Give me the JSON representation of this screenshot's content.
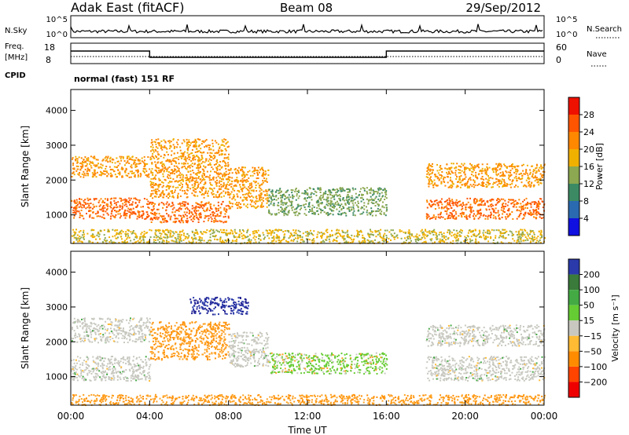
{
  "header": {
    "left": "Adak East (fitACF)",
    "center": "Beam 08",
    "right": "29/Sep/2012"
  },
  "strip": {
    "nsky_label": "N.Sky",
    "nsky_ticks": [
      "10^5",
      "10^0"
    ],
    "nsearch_label": "N.Search",
    "nsearch_ticks": [
      "10^5",
      "10^0"
    ],
    "freq_label": "Freq.",
    "freq_unit": "[MHz]",
    "freq_ticks": [
      "18",
      "8"
    ],
    "nave_label": "Nave",
    "nave_ticks": [
      "60",
      "0"
    ],
    "cpid_label": "CPID",
    "cpid_value": "normal (fast) 151 RF"
  },
  "time_axis": {
    "label": "Time UT",
    "ticks": [
      "00:00",
      "04:00",
      "08:00",
      "12:00",
      "16:00",
      "20:00",
      "00:00"
    ]
  },
  "colors": {
    "power_high": "#ee1100",
    "velocity_ground": "#c8c8c0",
    "velocity_pos": "#2a3aaa",
    "velocity_neg": "#ff8c00"
  },
  "chart_data": [
    {
      "type": "heatmap",
      "quantity": "Power",
      "colorbar_label": "Power [dB]",
      "colorbar_ticks": [
        "28",
        "24",
        "20",
        "16",
        "12",
        "8",
        "4"
      ],
      "colorbar_colors": [
        "#ee1100",
        "#ff5500",
        "#ff8800",
        "#f0b000",
        "#8ca850",
        "#3c8a64",
        "#2a6ab0",
        "#1010e0"
      ],
      "ylabel": "Slant Range [km]",
      "y_ticks": [
        "4000",
        "3000",
        "2000",
        "1000"
      ],
      "xlim_hours": [
        0,
        24
      ],
      "ylim_km": [
        180,
        4600
      ],
      "bands": [
        {
          "t": [
            0,
            4
          ],
          "r": [
            900,
            1500
          ],
          "level": 27
        },
        {
          "t": [
            0,
            4
          ],
          "r": [
            2100,
            2700
          ],
          "level": 24
        },
        {
          "t": [
            4,
            8
          ],
          "r": [
            800,
            1400
          ],
          "level": 27
        },
        {
          "t": [
            4,
            8
          ],
          "r": [
            1500,
            3200
          ],
          "level": 22
        },
        {
          "t": [
            8,
            10
          ],
          "r": [
            1200,
            2400
          ],
          "level": 21
        },
        {
          "t": [
            10,
            16
          ],
          "r": [
            1000,
            1800
          ],
          "level": 14
        },
        {
          "t": [
            18,
            24
          ],
          "r": [
            900,
            1500
          ],
          "level": 27
        },
        {
          "t": [
            18,
            24
          ],
          "r": [
            1800,
            2500
          ],
          "level": 23
        },
        {
          "t": [
            0,
            24
          ],
          "r": [
            200,
            600
          ],
          "level": 20
        }
      ]
    },
    {
      "type": "heatmap",
      "quantity": "Velocity",
      "colorbar_label": "Velocity [m s⁻¹]",
      "colorbar_ticks": [
        "200",
        "100",
        "50",
        "15",
        "−15",
        "−50",
        "−100",
        "−200"
      ],
      "colorbar_colors": [
        "#2a3aaa",
        "#3a7a3a",
        "#44aa44",
        "#66cc33",
        "#c8c8c0",
        "#ffbb33",
        "#ff8c00",
        "#ff4400",
        "#ee0000"
      ],
      "ylabel": "Slant Range [km]",
      "y_ticks": [
        "4000",
        "3000",
        "2000",
        "1000"
      ],
      "xlim_hours": [
        0,
        24
      ],
      "ylim_km": [
        180,
        4600
      ],
      "bands": [
        {
          "t": [
            0,
            4
          ],
          "r": [
            900,
            1600
          ],
          "kind": "ground"
        },
        {
          "t": [
            0,
            4
          ],
          "r": [
            2000,
            2700
          ],
          "kind": "ground"
        },
        {
          "t": [
            4,
            8
          ],
          "r": [
            1500,
            2600
          ],
          "kind": "neg"
        },
        {
          "t": [
            6,
            9
          ],
          "r": [
            2800,
            3300
          ],
          "kind": "pos"
        },
        {
          "t": [
            8,
            10
          ],
          "r": [
            1300,
            2300
          ],
          "kind": "ground"
        },
        {
          "t": [
            10,
            16
          ],
          "r": [
            1100,
            1700
          ],
          "kind": "green"
        },
        {
          "t": [
            18,
            24
          ],
          "r": [
            900,
            1600
          ],
          "kind": "ground"
        },
        {
          "t": [
            18,
            24
          ],
          "r": [
            1900,
            2500
          ],
          "kind": "ground"
        },
        {
          "t": [
            0,
            24
          ],
          "r": [
            200,
            500
          ],
          "kind": "neg"
        }
      ]
    }
  ]
}
